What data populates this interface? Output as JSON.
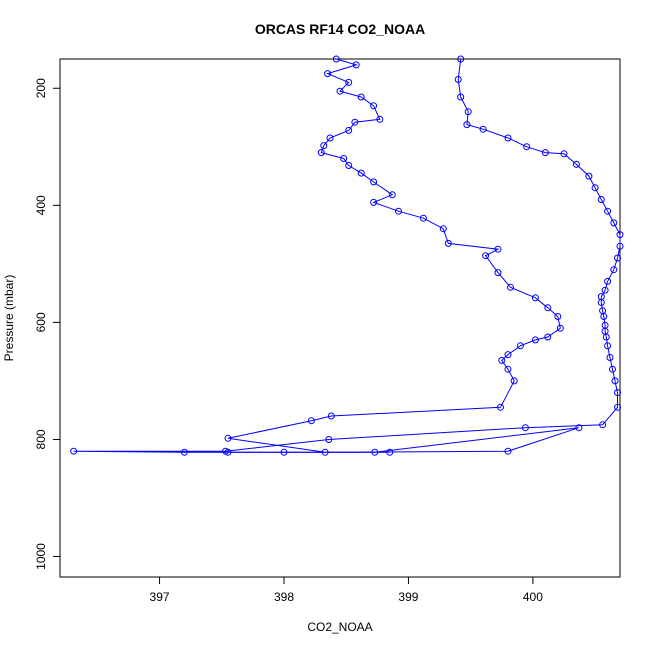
{
  "chart_data": {
    "type": "line",
    "title": "ORCAS RF14 CO2_NOAA",
    "xlabel": "CO2_NOAA",
    "ylabel": "Pressure (mbar)",
    "xlim": [
      396.2,
      400.7
    ],
    "ylim": [
      1035,
      150
    ],
    "y_reversed": true,
    "grid": false,
    "legend": "none",
    "x_ticks": [
      397,
      398,
      399,
      400
    ],
    "y_ticks": [
      200,
      400,
      600,
      800,
      1000
    ],
    "series": [
      {
        "color": "#0000ff",
        "marker": "open-circle",
        "points": [
          [
            399.42,
            150
          ],
          [
            399.4,
            185
          ],
          [
            399.42,
            215
          ],
          [
            399.48,
            240
          ],
          [
            399.47,
            262
          ],
          [
            399.6,
            270
          ],
          [
            399.8,
            285
          ],
          [
            399.95,
            300
          ],
          [
            400.1,
            310
          ],
          [
            400.25,
            312
          ],
          [
            400.35,
            330
          ],
          [
            400.45,
            350
          ],
          [
            400.5,
            370
          ],
          [
            400.55,
            390
          ],
          [
            400.6,
            410
          ],
          [
            400.65,
            430
          ],
          [
            400.7,
            450
          ],
          [
            400.7,
            470
          ],
          [
            400.68,
            490
          ],
          [
            400.65,
            510
          ],
          [
            400.6,
            530
          ],
          [
            400.58,
            545
          ],
          [
            400.55,
            556
          ],
          [
            400.55,
            566
          ],
          [
            400.56,
            580
          ],
          [
            400.57,
            590
          ],
          [
            400.58,
            605
          ],
          [
            400.58,
            615
          ],
          [
            400.59,
            625
          ],
          [
            400.6,
            640
          ],
          [
            400.62,
            660
          ],
          [
            400.64,
            680
          ],
          [
            400.66,
            700
          ],
          [
            400.68,
            720
          ],
          [
            400.68,
            745
          ],
          [
            400.56,
            775
          ],
          [
            399.94,
            780
          ],
          [
            398.36,
            800
          ],
          [
            397.53,
            820
          ],
          [
            396.31,
            820
          ],
          [
            397.2,
            822
          ],
          [
            398.0,
            822
          ],
          [
            398.85,
            822
          ]
        ]
      },
      {
        "color": "#0000ff",
        "marker": "open-circle",
        "points": [
          [
            398.42,
            150
          ],
          [
            398.58,
            160
          ],
          [
            398.35,
            175
          ],
          [
            398.52,
            190
          ],
          [
            398.45,
            205
          ],
          [
            398.62,
            215
          ],
          [
            398.72,
            230
          ],
          [
            398.77,
            253
          ],
          [
            398.57,
            258
          ],
          [
            398.52,
            272
          ],
          [
            398.37,
            285
          ],
          [
            398.32,
            298
          ],
          [
            398.3,
            310
          ],
          [
            398.48,
            320
          ],
          [
            398.52,
            332
          ],
          [
            398.62,
            345
          ],
          [
            398.72,
            360
          ],
          [
            398.87,
            382
          ],
          [
            398.72,
            395
          ],
          [
            398.92,
            410
          ],
          [
            399.12,
            422
          ],
          [
            399.28,
            440
          ],
          [
            399.32,
            465
          ],
          [
            399.72,
            475
          ],
          [
            399.62,
            486
          ],
          [
            399.72,
            515
          ],
          [
            399.82,
            540
          ],
          [
            400.02,
            558
          ],
          [
            400.12,
            575
          ],
          [
            400.2,
            590
          ],
          [
            400.22,
            610
          ],
          [
            400.12,
            625
          ],
          [
            400.02,
            630
          ],
          [
            399.9,
            640
          ],
          [
            399.8,
            655
          ],
          [
            399.75,
            665
          ],
          [
            399.8,
            680
          ],
          [
            399.85,
            700
          ],
          [
            399.74,
            745
          ],
          [
            398.38,
            760
          ],
          [
            398.22,
            768
          ],
          [
            397.55,
            798
          ],
          [
            398.33,
            822
          ],
          [
            399.8,
            820
          ],
          [
            400.37,
            780
          ],
          [
            398.73,
            822
          ],
          [
            397.55,
            822
          ]
        ]
      }
    ]
  }
}
